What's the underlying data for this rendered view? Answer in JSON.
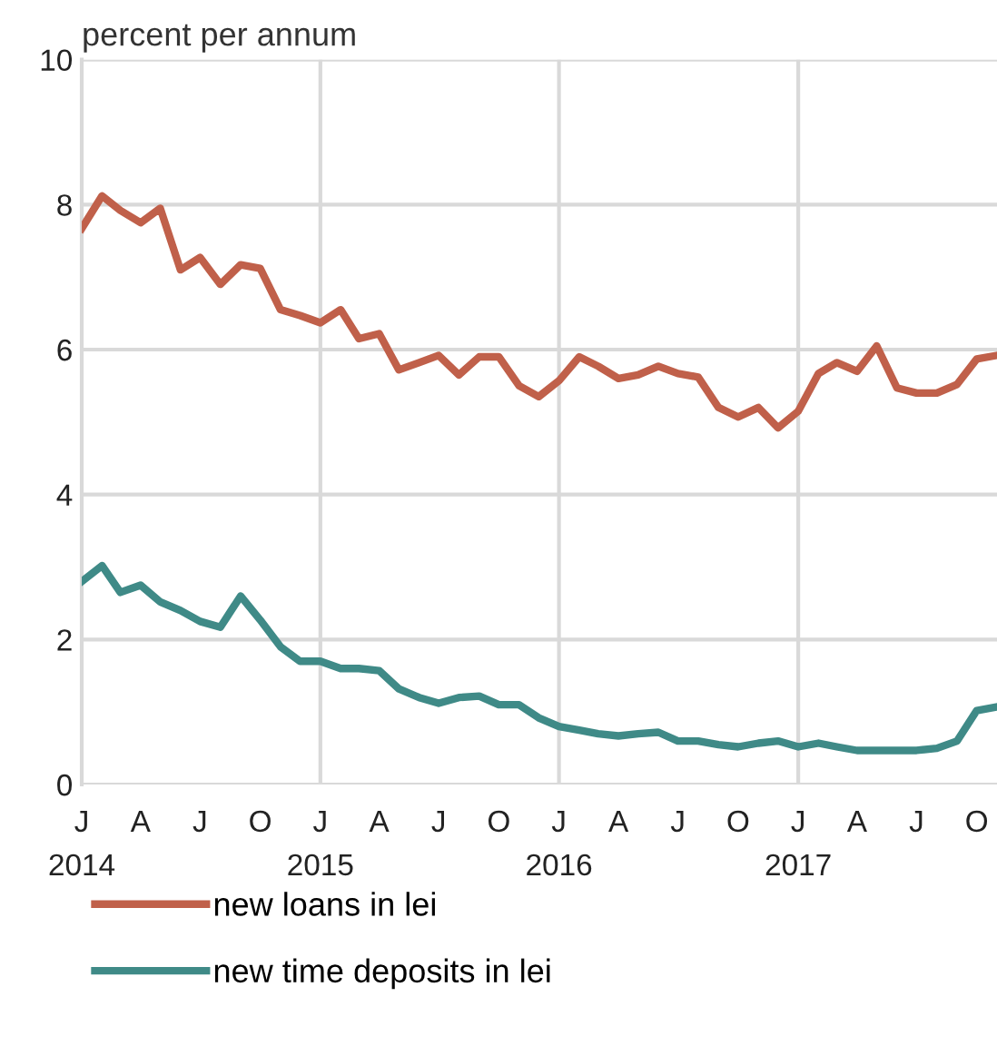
{
  "chart_data": {
    "type": "line",
    "ylabel": "percent per annum",
    "x": [
      "2014-01",
      "2014-02",
      "2014-03",
      "2014-04",
      "2014-05",
      "2014-06",
      "2014-07",
      "2014-08",
      "2014-09",
      "2014-10",
      "2014-11",
      "2014-12",
      "2015-01",
      "2015-02",
      "2015-03",
      "2015-04",
      "2015-05",
      "2015-06",
      "2015-07",
      "2015-08",
      "2015-09",
      "2015-10",
      "2015-11",
      "2015-12",
      "2016-01",
      "2016-02",
      "2016-03",
      "2016-04",
      "2016-05",
      "2016-06",
      "2016-07",
      "2016-08",
      "2016-09",
      "2016-10",
      "2016-11",
      "2016-12",
      "2017-01",
      "2017-02",
      "2017-03",
      "2017-04",
      "2017-05",
      "2017-06",
      "2017-07",
      "2017-08",
      "2017-09",
      "2017-10",
      "2017-11"
    ],
    "series": [
      {
        "name": "new loans in lei",
        "color": "#c0604a",
        "values": [
          7.67,
          8.12,
          7.92,
          7.75,
          7.95,
          7.1,
          7.27,
          6.9,
          7.17,
          7.12,
          6.55,
          6.47,
          6.37,
          6.55,
          6.15,
          6.22,
          5.72,
          5.82,
          5.92,
          5.65,
          5.9,
          5.9,
          5.5,
          5.35,
          5.57,
          5.9,
          5.77,
          5.6,
          5.65,
          5.77,
          5.67,
          5.62,
          5.2,
          5.07,
          5.2,
          4.92,
          5.15,
          5.67,
          5.82,
          5.7,
          6.05,
          5.47,
          5.4,
          5.4,
          5.52,
          5.87,
          5.92
        ]
      },
      {
        "name": "new time deposits in lei",
        "color": "#3f8a87",
        "values": [
          2.8,
          3.02,
          2.65,
          2.75,
          2.52,
          2.4,
          2.25,
          2.17,
          2.6,
          2.27,
          1.9,
          1.7,
          1.7,
          1.6,
          1.6,
          1.57,
          1.32,
          1.2,
          1.12,
          1.2,
          1.22,
          1.1,
          1.1,
          0.92,
          0.8,
          0.75,
          0.7,
          0.67,
          0.7,
          0.72,
          0.6,
          0.6,
          0.55,
          0.52,
          0.57,
          0.6,
          0.52,
          0.57,
          0.52,
          0.47,
          0.47,
          0.47,
          0.47,
          0.5,
          0.6,
          1.02,
          1.07
        ]
      }
    ],
    "xlim": [
      "2014-01",
      "2017-11"
    ],
    "xticks": [
      {
        "value": "2014-01",
        "label": "J\n2014"
      },
      {
        "value": "2014-04",
        "label": "A"
      },
      {
        "value": "2014-07",
        "label": "J"
      },
      {
        "value": "2014-10",
        "label": "O"
      },
      {
        "value": "2015-01",
        "label": "J\n2015"
      },
      {
        "value": "2015-04",
        "label": "A"
      },
      {
        "value": "2015-07",
        "label": "J"
      },
      {
        "value": "2015-10",
        "label": "O"
      },
      {
        "value": "2016-01",
        "label": "J\n2016"
      },
      {
        "value": "2016-04",
        "label": "A"
      },
      {
        "value": "2016-07",
        "label": "J"
      },
      {
        "value": "2016-10",
        "label": "O"
      },
      {
        "value": "2017-01",
        "label": "J\n2017"
      },
      {
        "value": "2017-04",
        "label": "A"
      },
      {
        "value": "2017-07",
        "label": "J"
      },
      {
        "value": "2017-10",
        "label": "O"
      }
    ],
    "ylim": [
      0,
      10
    ],
    "yticks": [
      0,
      2,
      4,
      6,
      8,
      10
    ],
    "grid": "y",
    "ref_lines": [
      {
        "axis": "x",
        "value": "2015-01",
        "color": "#d9d9d9"
      },
      {
        "axis": "x",
        "value": "2016-01",
        "color": "#d9d9d9"
      },
      {
        "axis": "x",
        "value": "2017-01",
        "color": "#d9d9d9"
      }
    ],
    "legend": "bottom",
    "line_style": "solid",
    "marker": "none"
  }
}
